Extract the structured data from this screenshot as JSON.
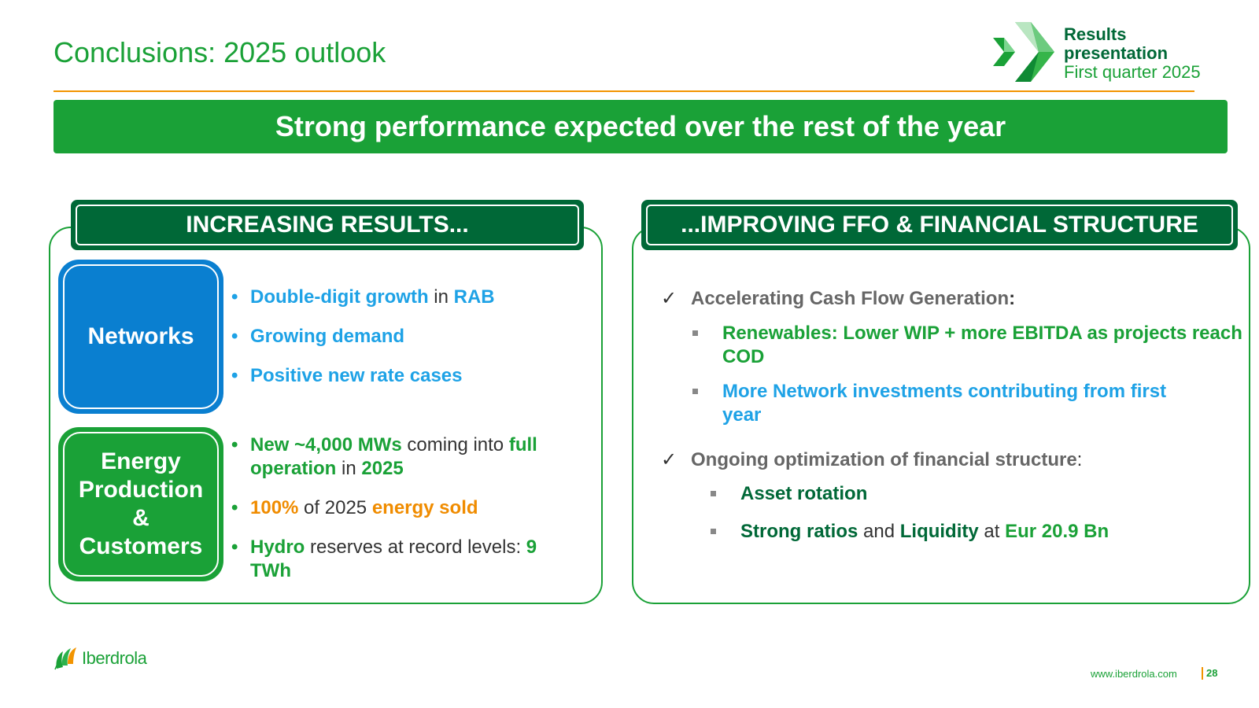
{
  "header": {
    "title": "Conclusions: 2025 outlook",
    "brand_line1": "Results",
    "brand_line2": "presentation",
    "brand_line3": "First quarter 2025"
  },
  "banner": "Strong performance expected over the rest of the year",
  "left_panel": {
    "heading": "INCREASING RESULTS...",
    "networks": {
      "label": "Networks",
      "b1_a": "Double-digit growth",
      "b1_b": " in ",
      "b1_c": "RAB",
      "b2": "Growing demand",
      "b3": "Positive new rate cases"
    },
    "energy": {
      "label_1": "Energy",
      "label_2": "Production",
      "label_3": "&",
      "label_4": "Customers",
      "b1_a": "New ~4,000 MWs",
      "b1_b": " coming into ",
      "b1_c": "full operation",
      "b1_d": " in ",
      "b1_e": "2025",
      "b2_a": "100%",
      "b2_b": " of 2025 ",
      "b2_c": "energy sold",
      "b3_a": "Hydro",
      "b3_b": " reserves at record levels: ",
      "b3_c": "9 TWh"
    }
  },
  "right_panel": {
    "heading": "...IMPROVING FFO & FINANCIAL STRUCTURE",
    "item1": "Accelerating Cash Flow Generation",
    "item1_colon": ":",
    "sub1": "Renewables: Lower WIP + more EBITDA as projects reach COD",
    "sub2": "More Network investments contributing from first year",
    "item2": "Ongoing optimization of financial structure",
    "item2_colon": ":",
    "sub3": "Asset rotation",
    "sub4_a": "Strong ratios",
    "sub4_b": " and ",
    "sub4_c": "Liquidity",
    "sub4_d": " at ",
    "sub4_e": "Eur 20.9 Bn"
  },
  "footer": {
    "logo_text": "Iberdrola",
    "url": "www.iberdrola.com",
    "page": "28"
  },
  "icons": {
    "bullet": "•",
    "check": "✓"
  }
}
